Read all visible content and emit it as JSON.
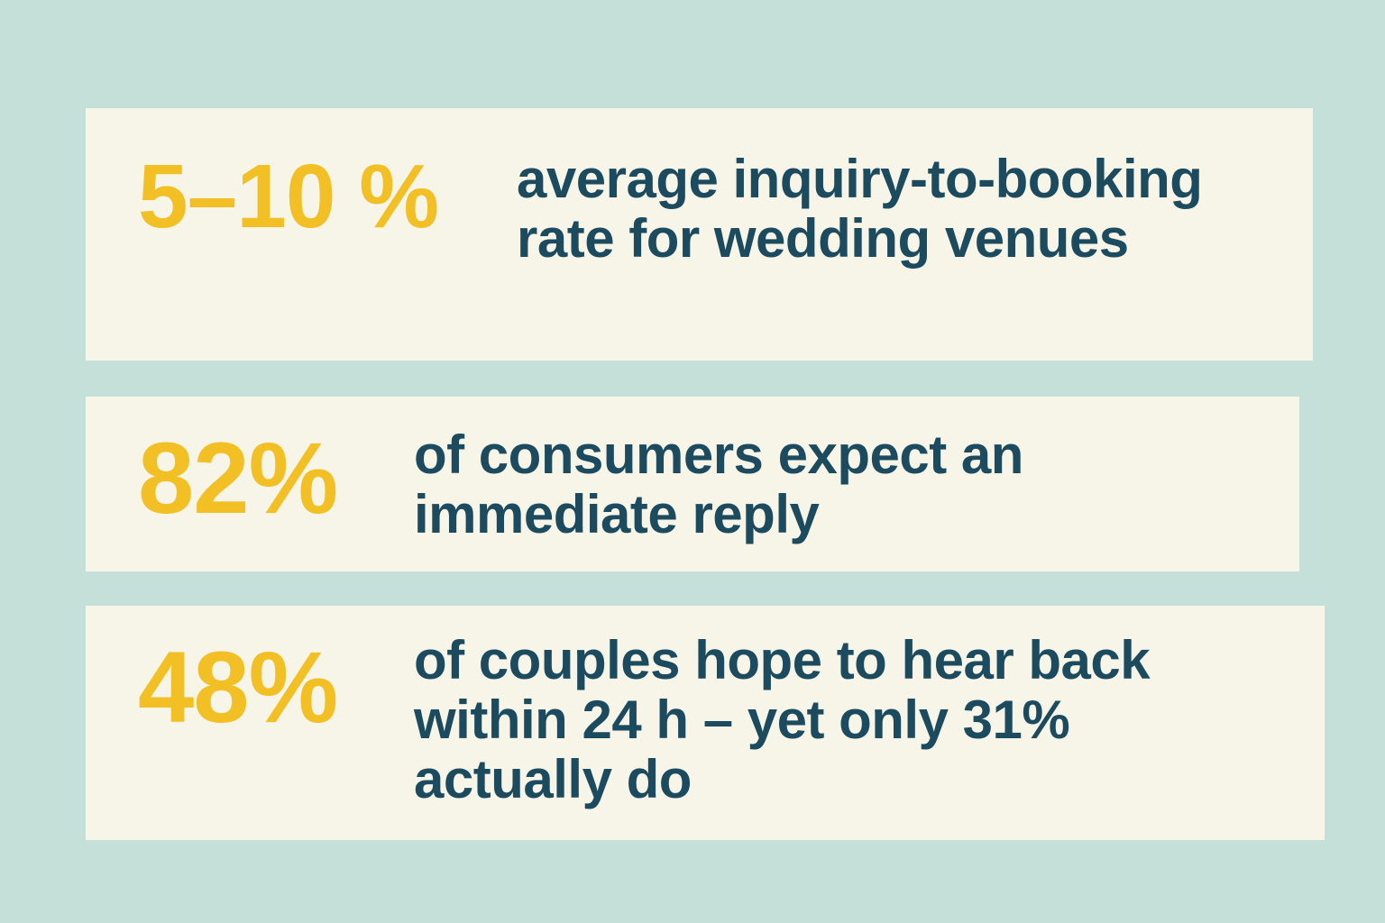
{
  "stats": [
    {
      "value": "5–10 %",
      "description": "average inquiry-to-booking rate for wedding venues"
    },
    {
      "value": "82%",
      "description": "of consumers expect an immediate reply"
    },
    {
      "value": "48%",
      "description": "of couples hope to hear back within 24 h – yet only 31% actually do"
    }
  ],
  "colors": {
    "background": "#c5e0d8",
    "card": "#f6f5e8",
    "accent": "#f2bf25",
    "text": "#1c4a5e"
  }
}
